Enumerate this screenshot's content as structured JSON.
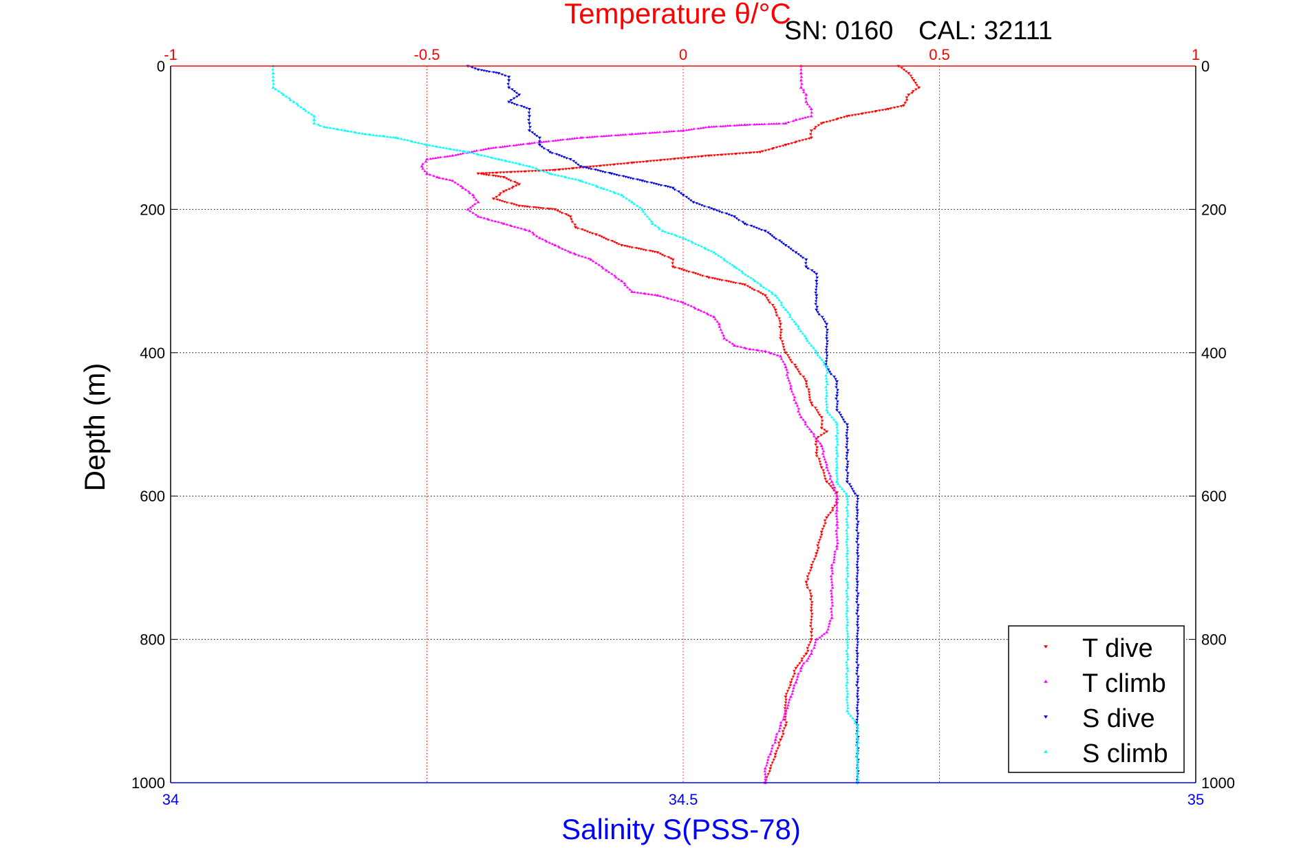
{
  "header": {
    "serial": "SN: 0160",
    "cal": "CAL: 32111"
  },
  "colors": {
    "temperature_axis": "#ff0000",
    "salinity_axis": "#0000ff",
    "t_dive": "#ff0000",
    "t_climb": "#ff00ff",
    "s_dive": "#0000dd",
    "s_climb": "#00ffff",
    "grid": "#000000"
  },
  "chart_data": {
    "type": "scatter",
    "top_axis": {
      "label": "Temperature θ/°C",
      "range": [
        -1,
        1
      ],
      "ticks": [
        -1,
        -0.5,
        0,
        0.5,
        1
      ],
      "tick_labels": [
        "-1",
        "-0.5",
        "0",
        "0.5",
        "1"
      ]
    },
    "bottom_axis": {
      "label": "Salinity S(PSS-78)",
      "range": [
        34,
        35
      ],
      "ticks": [
        34,
        34.5,
        35
      ],
      "tick_labels": [
        "34",
        "34.5",
        "35"
      ]
    },
    "y_axis": {
      "label": "Depth (m)",
      "range": [
        0,
        1000
      ],
      "reversed": true,
      "ticks": [
        0,
        200,
        400,
        600,
        800,
        1000
      ],
      "tick_labels": [
        "0",
        "200",
        "400",
        "600",
        "800",
        "1000"
      ]
    },
    "grid": true,
    "legend": {
      "placement": "bottom-right",
      "entries": [
        {
          "label": "T dive",
          "series": "t_dive"
        },
        {
          "label": "T climb",
          "series": "t_climb"
        },
        {
          "label": "S dive",
          "series": "s_dive"
        },
        {
          "label": "S climb",
          "series": "s_climb"
        }
      ]
    },
    "series": [
      {
        "name": "T dive",
        "key": "t_dive",
        "axis": "top",
        "marker": "triangle-down",
        "points": [
          [
            0.42,
            0
          ],
          [
            0.44,
            10
          ],
          [
            0.45,
            20
          ],
          [
            0.46,
            30
          ],
          [
            0.44,
            40
          ],
          [
            0.43,
            55
          ],
          [
            0.4,
            60
          ],
          [
            0.32,
            70
          ],
          [
            0.27,
            80
          ],
          [
            0.25,
            90
          ],
          [
            0.25,
            100
          ],
          [
            0.2,
            110
          ],
          [
            0.15,
            120
          ],
          [
            0.05,
            125
          ],
          [
            -0.1,
            135
          ],
          [
            -0.25,
            145
          ],
          [
            -0.4,
            150
          ],
          [
            -0.35,
            155
          ],
          [
            -0.32,
            165
          ],
          [
            -0.35,
            175
          ],
          [
            -0.37,
            185
          ],
          [
            -0.32,
            195
          ],
          [
            -0.25,
            200
          ],
          [
            -0.22,
            210
          ],
          [
            -0.21,
            225
          ],
          [
            -0.17,
            235
          ],
          [
            -0.12,
            250
          ],
          [
            -0.05,
            260
          ],
          [
            -0.02,
            270
          ],
          [
            -0.02,
            280
          ],
          [
            0.05,
            295
          ],
          [
            0.12,
            305
          ],
          [
            0.16,
            320
          ],
          [
            0.18,
            340
          ],
          [
            0.19,
            360
          ],
          [
            0.19,
            380
          ],
          [
            0.2,
            400
          ],
          [
            0.22,
            420
          ],
          [
            0.24,
            440
          ],
          [
            0.25,
            470
          ],
          [
            0.27,
            490
          ],
          [
            0.27,
            505
          ],
          [
            0.28,
            510
          ],
          [
            0.26,
            520
          ],
          [
            0.26,
            540
          ],
          [
            0.27,
            560
          ],
          [
            0.28,
            580
          ],
          [
            0.3,
            595
          ],
          [
            0.3,
            610
          ],
          [
            0.28,
            630
          ],
          [
            0.27,
            650
          ],
          [
            0.26,
            680
          ],
          [
            0.25,
            700
          ],
          [
            0.24,
            720
          ],
          [
            0.25,
            740
          ],
          [
            0.25,
            760
          ],
          [
            0.25,
            790
          ],
          [
            0.25,
            800
          ],
          [
            0.24,
            820
          ],
          [
            0.22,
            840
          ],
          [
            0.21,
            860
          ],
          [
            0.2,
            880
          ],
          [
            0.2,
            900
          ],
          [
            0.2,
            920
          ],
          [
            0.19,
            940
          ],
          [
            0.18,
            960
          ],
          [
            0.17,
            980
          ],
          [
            0.16,
            1000
          ]
        ]
      },
      {
        "name": "T climb",
        "key": "t_climb",
        "axis": "top",
        "marker": "triangle-up",
        "points": [
          [
            0.16,
            1000
          ],
          [
            0.16,
            980
          ],
          [
            0.17,
            960
          ],
          [
            0.18,
            940
          ],
          [
            0.19,
            920
          ],
          [
            0.2,
            900
          ],
          [
            0.21,
            880
          ],
          [
            0.22,
            860
          ],
          [
            0.23,
            840
          ],
          [
            0.25,
            820
          ],
          [
            0.26,
            800
          ],
          [
            0.28,
            790
          ],
          [
            0.29,
            770
          ],
          [
            0.29,
            740
          ],
          [
            0.29,
            700
          ],
          [
            0.3,
            670
          ],
          [
            0.3,
            640
          ],
          [
            0.3,
            620
          ],
          [
            0.3,
            600
          ],
          [
            0.29,
            580
          ],
          [
            0.28,
            560
          ],
          [
            0.27,
            530
          ],
          [
            0.25,
            510
          ],
          [
            0.23,
            490
          ],
          [
            0.22,
            470
          ],
          [
            0.21,
            450
          ],
          [
            0.2,
            420
          ],
          [
            0.19,
            405
          ],
          [
            0.16,
            398
          ],
          [
            0.13,
            395
          ],
          [
            0.1,
            390
          ],
          [
            0.08,
            380
          ],
          [
            0.07,
            360
          ],
          [
            0.06,
            350
          ],
          [
            0.03,
            340
          ],
          [
            0.0,
            330
          ],
          [
            -0.05,
            320
          ],
          [
            -0.1,
            315
          ],
          [
            -0.12,
            300
          ],
          [
            -0.15,
            285
          ],
          [
            -0.18,
            270
          ],
          [
            -0.22,
            260
          ],
          [
            -0.25,
            250
          ],
          [
            -0.28,
            240
          ],
          [
            -0.3,
            230
          ],
          [
            -0.35,
            220
          ],
          [
            -0.4,
            210
          ],
          [
            -0.42,
            200
          ],
          [
            -0.4,
            190
          ],
          [
            -0.41,
            180
          ],
          [
            -0.43,
            170
          ],
          [
            -0.45,
            160
          ],
          [
            -0.48,
            155
          ],
          [
            -0.5,
            150
          ],
          [
            -0.51,
            140
          ],
          [
            -0.5,
            130
          ],
          [
            -0.45,
            125
          ],
          [
            -0.38,
            115
          ],
          [
            -0.3,
            108
          ],
          [
            -0.2,
            100
          ],
          [
            -0.1,
            95
          ],
          [
            0.0,
            90
          ],
          [
            0.05,
            85
          ],
          [
            0.12,
            82
          ],
          [
            0.2,
            80
          ],
          [
            0.22,
            75
          ],
          [
            0.25,
            70
          ],
          [
            0.25,
            60
          ],
          [
            0.24,
            50
          ],
          [
            0.24,
            40
          ],
          [
            0.23,
            30
          ],
          [
            0.23,
            20
          ],
          [
            0.23,
            10
          ],
          [
            0.23,
            0
          ]
        ]
      },
      {
        "name": "S dive",
        "key": "s_dive",
        "axis": "bottom",
        "marker": "triangle-down",
        "points": [
          [
            34.29,
            0
          ],
          [
            34.3,
            5
          ],
          [
            34.32,
            10
          ],
          [
            34.33,
            15
          ],
          [
            34.33,
            20
          ],
          [
            34.33,
            30
          ],
          [
            34.34,
            40
          ],
          [
            34.33,
            50
          ],
          [
            34.35,
            60
          ],
          [
            34.35,
            70
          ],
          [
            34.35,
            80
          ],
          [
            34.35,
            90
          ],
          [
            34.36,
            100
          ],
          [
            34.36,
            110
          ],
          [
            34.37,
            120
          ],
          [
            34.39,
            130
          ],
          [
            34.4,
            140
          ],
          [
            34.43,
            150
          ],
          [
            34.46,
            160
          ],
          [
            34.49,
            170
          ],
          [
            34.5,
            180
          ],
          [
            34.51,
            190
          ],
          [
            34.53,
            200
          ],
          [
            34.55,
            210
          ],
          [
            34.56,
            220
          ],
          [
            34.58,
            230
          ],
          [
            34.6,
            250
          ],
          [
            34.61,
            260
          ],
          [
            34.62,
            270
          ],
          [
            34.62,
            280
          ],
          [
            34.63,
            290
          ],
          [
            34.63,
            300
          ],
          [
            34.63,
            320
          ],
          [
            34.63,
            340
          ],
          [
            34.64,
            360
          ],
          [
            34.64,
            380
          ],
          [
            34.64,
            400
          ],
          [
            34.64,
            420
          ],
          [
            34.65,
            440
          ],
          [
            34.65,
            460
          ],
          [
            34.65,
            480
          ],
          [
            34.66,
            500
          ],
          [
            34.66,
            520
          ],
          [
            34.66,
            540
          ],
          [
            34.66,
            560
          ],
          [
            34.66,
            580
          ],
          [
            34.67,
            600
          ],
          [
            34.67,
            620
          ],
          [
            34.67,
            640
          ],
          [
            34.67,
            660
          ],
          [
            34.67,
            680
          ],
          [
            34.67,
            700
          ],
          [
            34.67,
            720
          ],
          [
            34.67,
            740
          ],
          [
            34.67,
            760
          ],
          [
            34.67,
            780
          ],
          [
            34.67,
            800
          ],
          [
            34.67,
            820
          ],
          [
            34.67,
            840
          ],
          [
            34.67,
            860
          ],
          [
            34.67,
            880
          ],
          [
            34.67,
            900
          ],
          [
            34.67,
            920
          ],
          [
            34.67,
            940
          ],
          [
            34.67,
            960
          ],
          [
            34.67,
            980
          ],
          [
            34.67,
            1000
          ]
        ]
      },
      {
        "name": "S climb",
        "key": "s_climb",
        "axis": "bottom",
        "marker": "triangle-up",
        "points": [
          [
            34.67,
            1000
          ],
          [
            34.67,
            980
          ],
          [
            34.67,
            960
          ],
          [
            34.67,
            940
          ],
          [
            34.67,
            920
          ],
          [
            34.66,
            900
          ],
          [
            34.66,
            880
          ],
          [
            34.66,
            860
          ],
          [
            34.66,
            840
          ],
          [
            34.66,
            820
          ],
          [
            34.66,
            800
          ],
          [
            34.66,
            780
          ],
          [
            34.66,
            760
          ],
          [
            34.66,
            740
          ],
          [
            34.66,
            720
          ],
          [
            34.66,
            700
          ],
          [
            34.66,
            680
          ],
          [
            34.66,
            660
          ],
          [
            34.66,
            640
          ],
          [
            34.66,
            620
          ],
          [
            34.66,
            600
          ],
          [
            34.65,
            580
          ],
          [
            34.65,
            560
          ],
          [
            34.65,
            540
          ],
          [
            34.65,
            520
          ],
          [
            34.65,
            500
          ],
          [
            34.64,
            480
          ],
          [
            34.64,
            460
          ],
          [
            34.64,
            440
          ],
          [
            34.64,
            420
          ],
          [
            34.63,
            400
          ],
          [
            34.62,
            380
          ],
          [
            34.61,
            360
          ],
          [
            34.6,
            340
          ],
          [
            34.59,
            320
          ],
          [
            34.57,
            300
          ],
          [
            34.55,
            280
          ],
          [
            34.53,
            260
          ],
          [
            34.5,
            240
          ],
          [
            34.48,
            230
          ],
          [
            34.47,
            220
          ],
          [
            34.46,
            200
          ],
          [
            34.45,
            190
          ],
          [
            34.44,
            180
          ],
          [
            34.42,
            170
          ],
          [
            34.4,
            160
          ],
          [
            34.37,
            150
          ],
          [
            34.35,
            140
          ],
          [
            34.32,
            130
          ],
          [
            34.29,
            120
          ],
          [
            34.25,
            110
          ],
          [
            34.22,
            100
          ],
          [
            34.19,
            95
          ],
          [
            34.17,
            90
          ],
          [
            34.15,
            85
          ],
          [
            34.14,
            80
          ],
          [
            34.14,
            75
          ],
          [
            34.14,
            70
          ],
          [
            34.13,
            60
          ],
          [
            34.12,
            50
          ],
          [
            34.11,
            40
          ],
          [
            34.1,
            30
          ],
          [
            34.1,
            20
          ],
          [
            34.1,
            10
          ],
          [
            34.1,
            0
          ]
        ]
      }
    ]
  }
}
